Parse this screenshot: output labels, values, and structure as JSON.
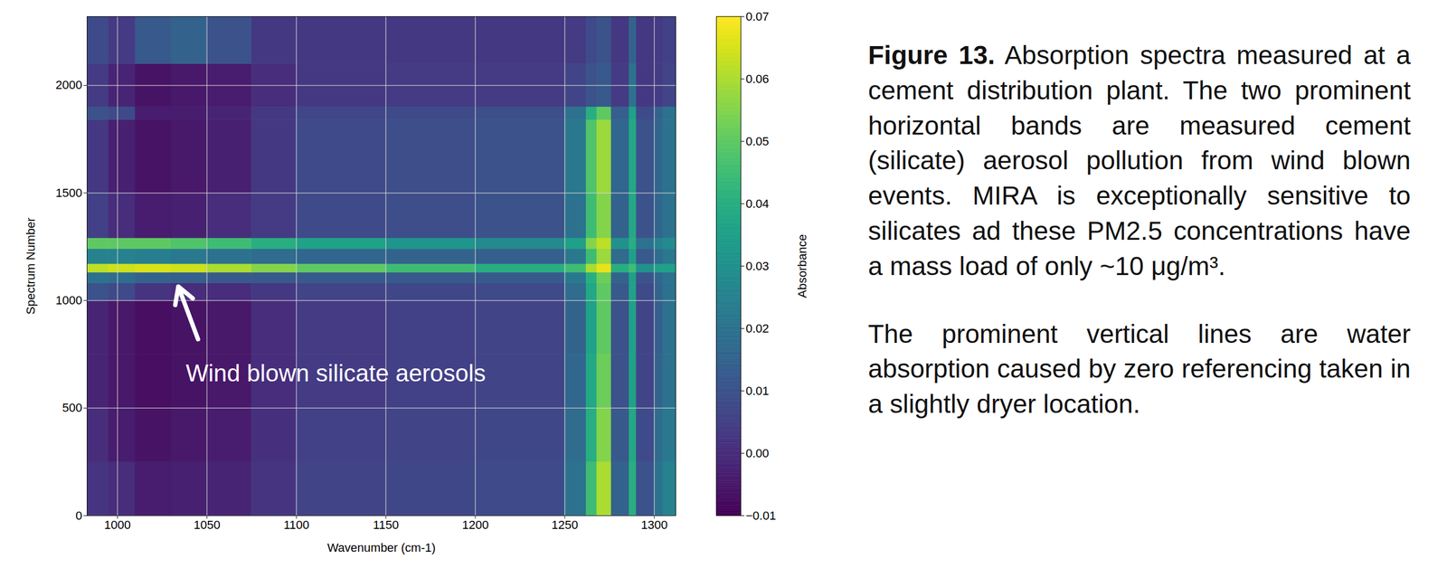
{
  "chart_data": {
    "type": "heatmap",
    "xlabel": "Wavenumber (cm-1)",
    "ylabel": "Spectrum Number",
    "xlim": [
      983,
      1312
    ],
    "ylim": [
      0,
      2320
    ],
    "xticks": [
      1000,
      1050,
      1100,
      1150,
      1200,
      1250,
      1300
    ],
    "yticks": [
      0,
      500,
      1000,
      1500,
      2000
    ],
    "grid": true,
    "x_edges": [
      983,
      995,
      1010,
      1030,
      1050,
      1075,
      1100,
      1150,
      1200,
      1250,
      1262,
      1268,
      1276,
      1286,
      1290,
      1300,
      1305,
      1312
    ],
    "y_edges": [
      0,
      250,
      500,
      750,
      1000,
      1080,
      1130,
      1170,
      1240,
      1290,
      1500,
      1840,
      1900,
      2100,
      2320
    ],
    "values": [
      [
        0.002,
        0.0,
        -0.004,
        -0.003,
        -0.002,
        0.002,
        0.006,
        0.007,
        0.008,
        0.02,
        0.045,
        0.06,
        0.015,
        0.04,
        0.01,
        0.02,
        0.025
      ],
      [
        0.0,
        -0.004,
        -0.006,
        -0.005,
        -0.004,
        0.001,
        0.005,
        0.006,
        0.007,
        0.018,
        0.04,
        0.055,
        0.012,
        0.038,
        0.008,
        0.018,
        0.022
      ],
      [
        -0.002,
        -0.005,
        -0.007,
        -0.006,
        -0.005,
        0.0,
        0.004,
        0.005,
        0.006,
        0.016,
        0.038,
        0.052,
        0.01,
        0.036,
        0.006,
        0.015,
        0.02
      ],
      [
        -0.002,
        -0.005,
        -0.007,
        -0.006,
        -0.005,
        0.0,
        0.004,
        0.005,
        0.006,
        0.015,
        0.036,
        0.05,
        0.01,
        0.035,
        0.006,
        0.014,
        0.02
      ],
      [
        0.01,
        0.008,
        0.002,
        0.0,
        0.0,
        0.003,
        0.006,
        0.007,
        0.008,
        0.018,
        0.038,
        0.05,
        0.012,
        0.036,
        0.008,
        0.015,
        0.02
      ],
      [
        0.02,
        0.018,
        0.015,
        0.014,
        0.012,
        0.012,
        0.012,
        0.012,
        0.012,
        0.022,
        0.04,
        0.052,
        0.015,
        0.035,
        0.01,
        0.016,
        0.02
      ],
      [
        0.062,
        0.064,
        0.065,
        0.064,
        0.06,
        0.055,
        0.05,
        0.045,
        0.04,
        0.045,
        0.06,
        0.067,
        0.04,
        0.045,
        0.03,
        0.035,
        0.035
      ],
      [
        0.025,
        0.025,
        0.024,
        0.022,
        0.02,
        0.018,
        0.016,
        0.015,
        0.014,
        0.022,
        0.045,
        0.058,
        0.018,
        0.035,
        0.012,
        0.018,
        0.022
      ],
      [
        0.05,
        0.05,
        0.05,
        0.048,
        0.045,
        0.04,
        0.036,
        0.032,
        0.028,
        0.035,
        0.055,
        0.062,
        0.03,
        0.04,
        0.02,
        0.025,
        0.028
      ],
      [
        0.005,
        0.0,
        -0.004,
        -0.003,
        0.0,
        0.004,
        0.008,
        0.009,
        0.01,
        0.02,
        0.045,
        0.055,
        0.015,
        0.038,
        0.01,
        0.016,
        0.02
      ],
      [
        0.003,
        -0.003,
        -0.006,
        -0.005,
        -0.003,
        0.003,
        0.008,
        0.009,
        0.01,
        0.022,
        0.048,
        0.058,
        0.016,
        0.038,
        0.01,
        0.016,
        0.02
      ],
      [
        0.01,
        0.008,
        -0.004,
        -0.004,
        -0.002,
        0.003,
        0.007,
        0.008,
        0.009,
        0.02,
        0.04,
        0.05,
        0.014,
        0.035,
        0.008,
        0.015,
        0.02
      ],
      [
        0.004,
        -0.002,
        -0.006,
        -0.005,
        -0.004,
        0.0,
        0.003,
        0.004,
        0.004,
        0.006,
        0.01,
        0.012,
        0.004,
        0.02,
        0.003,
        0.004,
        0.006
      ],
      [
        0.008,
        0.004,
        0.012,
        0.015,
        0.01,
        0.003,
        0.003,
        0.003,
        0.003,
        0.004,
        0.008,
        0.01,
        0.003,
        0.015,
        0.003,
        0.004,
        0.005
      ]
    ],
    "colorbar": {
      "label": "Absorbance",
      "color": "viridis",
      "range": [
        -0.01,
        0.07
      ],
      "ticks": [
        {
          "value": -0.01,
          "label": "−0.01"
        },
        {
          "value": 0,
          "label": "0.00"
        },
        0.01,
        0.02,
        0.03,
        0.04,
        0.05,
        0.06,
        0.07
      ]
    },
    "annotations": [
      {
        "text": "Wind blown silicate aerosols",
        "x": 1122,
        "y": 660,
        "arrow_from_x": 1045,
        "arrow_from_y": 820,
        "arrow_x": 1034,
        "arrow_y": 1065
      }
    ]
  },
  "caption": {
    "label": "Figure 13.",
    "paragraphs": [
      "Absorption spectra measured at a cement distribution plant. The two prominent horizontal bands are measured cement (silicate) aerosol pollution from wind blown events. MIRA is exceptionally sensitive to silicates ad these PM2.5 concentrations have a mass load of only ~10 μg/m³.",
      "The prominent vertical lines are water absorption caused by zero referencing taken in a slightly dryer location."
    ]
  }
}
